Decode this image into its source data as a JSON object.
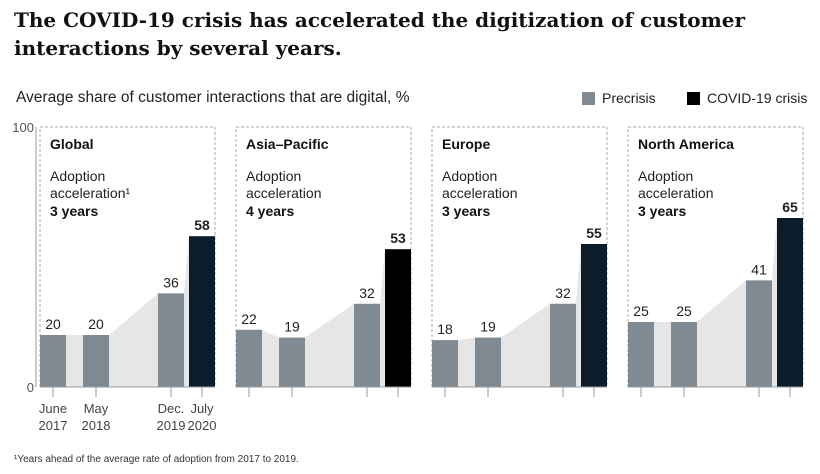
{
  "title": "The COVID-19 crisis has accelerated the digitization of customer interactions by several years.",
  "subtitle": "Average share of customer interactions that are digital,",
  "subtitle_unit": "%",
  "footnote": "¹Years ahead of the average rate of adoption from 2017 to 2019.",
  "colors": {
    "precrisis": "#7f8a92",
    "covid": "#0b1c2b",
    "covid_asia": "#000000",
    "area": "#e6e6e6"
  },
  "chart_data": {
    "type": "bar",
    "title": "Average share of customer interactions that are digital, %",
    "ylim": [
      0,
      100
    ],
    "yticks": [
      "0",
      "100"
    ],
    "legend": [
      {
        "name": "Precrisis"
      },
      {
        "name": "COVID-19 crisis"
      }
    ],
    "legend_position": "top-right",
    "categories": [
      [
        "June",
        "2017"
      ],
      [
        "May",
        "2018"
      ],
      [
        "Dec.",
        "2019"
      ],
      [
        "July",
        "2020"
      ]
    ],
    "panels": [
      {
        "name": "Global",
        "label1": "Adoption",
        "label2": "acceleration¹",
        "accel": "3 years",
        "values": [
          20,
          20,
          36,
          58
        ]
      },
      {
        "name": "Asia–Pacific",
        "label1": "Adoption",
        "label2": "acceleration",
        "accel": "4 years",
        "values": [
          22,
          19,
          32,
          53
        ]
      },
      {
        "name": "Europe",
        "label1": "Adoption",
        "label2": "acceleration",
        "accel": "3 years",
        "values": [
          18,
          19,
          32,
          55
        ]
      },
      {
        "name": "North America",
        "label1": "Adoption",
        "label2": "acceleration",
        "accel": "3 years",
        "values": [
          25,
          25,
          41,
          65
        ]
      }
    ]
  }
}
